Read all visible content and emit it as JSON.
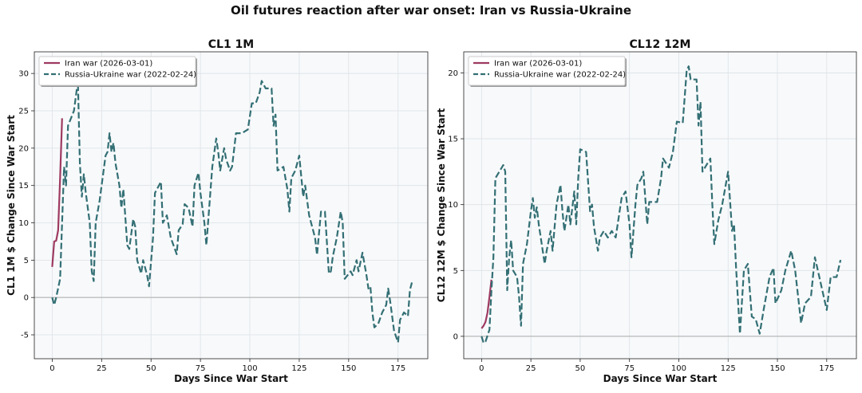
{
  "title": "Oil futures reaction after war onset: Iran vs Russia-Ukraine",
  "chart_data": [
    {
      "type": "line",
      "title": "CL1 1M",
      "xlabel": "Days Since War Start",
      "ylabel": "CL1 1M $ Change Since War Start",
      "xlim": [
        -9.05,
        190.05
      ],
      "ylim": [
        -8.2,
        32.9
      ],
      "xticks": [
        0,
        25,
        50,
        75,
        100,
        125,
        150,
        175
      ],
      "yticks": [
        -5,
        0,
        5,
        10,
        15,
        20,
        25,
        30
      ],
      "grid": true,
      "legend": "upper left",
      "hline": 0,
      "series": [
        {
          "name": "Iran war (2026-03-01)",
          "color": "#9e3a60",
          "linestyle": "solid",
          "x": [
            0,
            1,
            2,
            3,
            4,
            5
          ],
          "values": [
            4.1,
            7.5,
            7.6,
            9,
            16,
            24
          ]
        },
        {
          "name": "Russia-Ukraine war (2022-02-24)",
          "color": "#336f74",
          "linestyle": "dashed",
          "x": [
            0,
            1,
            2,
            4,
            5,
            6,
            7,
            8,
            11,
            13,
            14,
            15,
            16,
            17,
            19,
            20,
            21,
            22,
            24,
            27,
            28,
            29,
            30,
            31,
            32,
            34,
            35,
            36,
            38,
            39,
            41,
            42,
            43,
            45,
            46,
            48,
            49,
            51,
            52,
            55,
            56,
            58,
            60,
            63,
            64,
            66,
            67,
            69,
            71,
            72,
            74,
            75,
            77,
            78,
            81,
            83,
            84,
            85,
            87,
            88,
            90,
            91,
            93,
            96,
            99,
            101,
            103,
            105,
            106,
            108,
            111,
            112,
            113,
            114,
            117,
            119,
            120,
            121,
            123,
            125,
            127,
            128,
            130,
            133,
            134,
            136,
            138,
            140,
            141,
            142,
            144,
            146,
            147,
            148,
            151,
            152,
            154,
            155,
            157,
            159,
            160,
            161,
            162,
            163,
            165,
            167,
            169,
            170,
            171,
            172,
            173,
            175,
            176,
            178,
            180,
            181,
            182
          ],
          "values": [
            0,
            -1,
            0,
            2.5,
            10,
            17.5,
            15,
            23,
            25,
            29,
            18,
            13.5,
            16.5,
            14,
            10,
            3.5,
            2.2,
            10,
            13,
            19,
            19.5,
            22,
            19.5,
            20.7,
            18,
            15,
            12,
            14.5,
            7,
            6.5,
            10.5,
            9.5,
            5,
            3.2,
            5,
            3,
            1.5,
            8,
            14,
            15.5,
            10,
            11,
            8,
            5.8,
            9,
            9.8,
            12.5,
            12,
            9.5,
            15,
            16.7,
            14,
            10,
            7,
            17.5,
            21.3,
            19.5,
            17,
            20,
            18.5,
            17,
            17.5,
            22,
            22,
            22.5,
            26,
            26,
            27.5,
            29,
            28,
            28,
            23,
            24.5,
            17,
            17.5,
            14.5,
            11.5,
            16,
            17,
            19,
            13.5,
            15,
            11,
            8,
            5.7,
            11.5,
            11.5,
            3.2,
            3.5,
            5.5,
            8,
            11.5,
            10,
            2.5,
            3.5,
            3,
            5,
            3.5,
            6,
            3,
            1.2,
            1.5,
            -2,
            -4,
            -3.5,
            -2,
            -1,
            1.2,
            -0.5,
            -2.5,
            -4.5,
            -6,
            -3,
            -2,
            -2.5,
            1,
            2
          ]
        }
      ]
    },
    {
      "type": "line",
      "title": "CL12 12M",
      "xlabel": "Days Since War Start",
      "ylabel": "CL12 12M $ Change Since War Start",
      "xlim": [
        -9.05,
        190.05
      ],
      "ylim": [
        -1.7,
        21.6
      ],
      "xticks": [
        0,
        25,
        50,
        75,
        100,
        125,
        150,
        175
      ],
      "yticks": [
        0,
        5,
        10,
        15,
        20
      ],
      "grid": true,
      "legend": "upper left",
      "hline": 0,
      "series": [
        {
          "name": "Iran war (2026-03-01)",
          "color": "#9e3a60",
          "linestyle": "solid",
          "x": [
            0,
            1,
            2,
            3,
            4,
            5
          ],
          "values": [
            0.6,
            0.8,
            1.1,
            1.8,
            3.0,
            4.3
          ]
        },
        {
          "name": "Russia-Ukraine war (2022-02-24)",
          "color": "#336f74",
          "linestyle": "dashed",
          "x": [
            0,
            1,
            2,
            4,
            5,
            6,
            7,
            9,
            11,
            12,
            13,
            14,
            15,
            16,
            18,
            19,
            20,
            21,
            23,
            25,
            26,
            27,
            28,
            29,
            31,
            32,
            33,
            35,
            36,
            38,
            40,
            41,
            42,
            44,
            45,
            47,
            48,
            49,
            50,
            53,
            55,
            56,
            57,
            59,
            60,
            62,
            64,
            66,
            68,
            71,
            73,
            75,
            76,
            78,
            79,
            81,
            82,
            84,
            85,
            89,
            91,
            92,
            95,
            97,
            99,
            102,
            104,
            105,
            106,
            109,
            110,
            111,
            112,
            114,
            116,
            117,
            118,
            120,
            122,
            125,
            127,
            128,
            129,
            131,
            133,
            135,
            137,
            139,
            141,
            143,
            146,
            148,
            149,
            152,
            154,
            157,
            159,
            162,
            164,
            167,
            169,
            172,
            175,
            177,
            180,
            182
          ],
          "values": [
            0,
            -0.5,
            -0.4,
            0.5,
            3.5,
            6,
            12,
            12.5,
            13,
            12.5,
            3.5,
            6,
            7.3,
            5,
            4.5,
            3,
            0.8,
            5.5,
            7,
            9.5,
            10.5,
            9,
            9.8,
            8.5,
            6.5,
            5.5,
            6.5,
            8,
            6.5,
            10,
            11.5,
            9.5,
            8,
            10,
            8.5,
            11,
            8.5,
            12,
            14.2,
            14,
            9.5,
            10,
            8.3,
            6.5,
            7.5,
            8,
            7.5,
            8,
            7.5,
            10.5,
            11,
            8.5,
            6,
            10,
            11.5,
            12,
            12.5,
            8.5,
            10.2,
            10.2,
            12,
            13.5,
            12.8,
            14,
            16.3,
            16.2,
            20.2,
            20.5,
            19.5,
            19.5,
            16,
            17.8,
            12.5,
            13,
            13.5,
            10,
            7,
            8.8,
            10,
            12.5,
            8,
            8.5,
            5.3,
            0.2,
            5,
            5.5,
            1.5,
            1.3,
            0.2,
            2,
            4.5,
            5.2,
            2.5,
            3.5,
            5,
            6.5,
            5,
            1,
            2.5,
            3,
            6,
            4,
            2,
            4.5,
            4.5,
            5.8
          ]
        }
      ]
    }
  ]
}
